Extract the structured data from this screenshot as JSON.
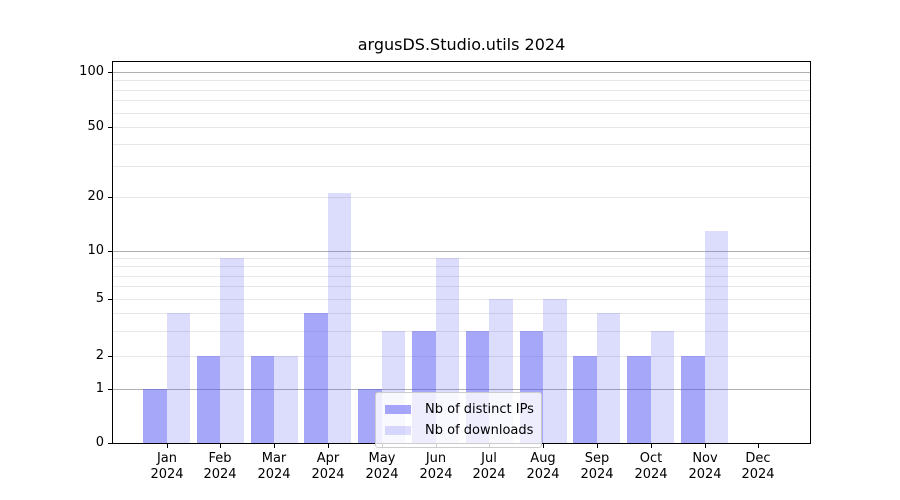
{
  "chart_data": {
    "type": "bar",
    "title": "argusDS.Studio.utils 2024",
    "categories": [
      "Jan 2024",
      "Feb 2024",
      "Mar 2024",
      "Apr 2024",
      "May 2024",
      "Jun 2024",
      "Jul 2024",
      "Aug 2024",
      "Sep 2024",
      "Oct 2024",
      "Nov 2024",
      "Dec 2024"
    ],
    "series": [
      {
        "name": "Nb of distinct IPs",
        "color": "rgba(80,80,245,0.5)",
        "values": [
          1,
          2,
          2,
          4,
          1,
          3,
          3,
          3,
          2,
          2,
          2,
          0
        ]
      },
      {
        "name": "Nb of downloads",
        "color": "rgba(80,80,245,0.2)",
        "values": [
          4,
          9,
          2,
          21,
          3,
          9,
          5,
          5,
          4,
          3,
          13,
          0
        ]
      }
    ],
    "xlabel": "",
    "ylabel": "",
    "yscale": "symlog",
    "ylim": [
      0,
      113
    ],
    "yticks": [
      0,
      1,
      2,
      5,
      10,
      20,
      50,
      100
    ],
    "major_gridlines": [
      1,
      10,
      100
    ],
    "minor_gridlines": [
      2,
      3,
      4,
      5,
      6,
      7,
      8,
      9,
      20,
      30,
      40,
      50,
      60,
      70,
      80,
      90
    ],
    "grid": "on",
    "legend_position": "inside-bottom-center",
    "colors": {
      "bar_distinct_ips": "#a8a8fa",
      "bar_downloads": "#dcdcfa",
      "major_grid": "#b0b0b0",
      "minor_grid": "#e7e7e7",
      "axis": "#000000",
      "background": "#ffffff"
    }
  }
}
